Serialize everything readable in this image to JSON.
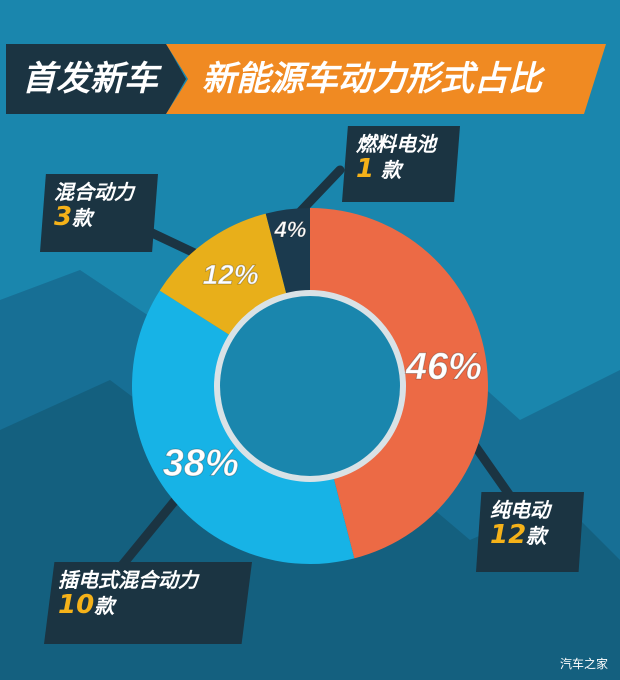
{
  "header": {
    "left_title": "首发新车",
    "right_title": "新能源车动力形式占比"
  },
  "chart_data": {
    "type": "pie",
    "title": "新能源车动力形式占比",
    "slices": [
      {
        "label": "纯电动",
        "value": 46,
        "value_label": "46%",
        "count": 12,
        "count_unit": "款",
        "color": "#ec6a45"
      },
      {
        "label": "插电式混合动力",
        "value": 38,
        "value_label": "38%",
        "count": 10,
        "count_unit": "款",
        "color": "#17b3e6"
      },
      {
        "label": "混合动力",
        "value": 12,
        "value_label": "12%",
        "count": 3,
        "count_unit": "款",
        "color": "#e8af1a"
      },
      {
        "label": "燃料电池",
        "value": 4,
        "value_label": "4%",
        "count": 1,
        "count_unit": "款",
        "color": "#1b3a4e"
      }
    ]
  },
  "callouts": {
    "fuel": {
      "name": "燃料电池",
      "count": "1",
      "unit": "款"
    },
    "hybrid": {
      "name": "混合动力",
      "count": "3",
      "unit": "款"
    },
    "ev": {
      "name": "纯电动",
      "count": "12",
      "unit": "款"
    },
    "phev": {
      "name": "插电式混合动力",
      "count": "10",
      "unit": "款"
    }
  },
  "watermark": "汽车之家"
}
